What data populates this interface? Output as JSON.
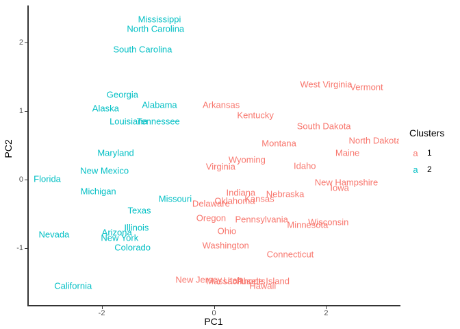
{
  "figure": {
    "background": "#ffffff",
    "axis_line_color": "#333333",
    "tick_label_color": "#4d4d4d"
  },
  "legend": {
    "title": "Clusters",
    "key_glyph": "a",
    "items": [
      {
        "label": "1",
        "color": "#F8766D"
      },
      {
        "label": "2",
        "color": "#00BFC4"
      }
    ]
  },
  "chart_data": {
    "type": "scatter",
    "title": "",
    "xlabel": "PC1",
    "ylabel": "PC2",
    "xlim": [
      -3.3,
      3.3
    ],
    "ylim": [
      -1.84,
      2.54
    ],
    "x_ticks": [
      -2,
      0,
      2
    ],
    "y_ticks": [
      -1,
      0,
      1,
      2
    ],
    "grid": false,
    "point_style": "text-labels",
    "legend_position": "right",
    "series": [
      {
        "name": "1",
        "color": "#F8766D",
        "points": [
          {
            "label": "Arkansas",
            "x": 0.13,
            "y": 1.09
          },
          {
            "label": "Kentucky",
            "x": 0.74,
            "y": 0.94
          },
          {
            "label": "West Virginia",
            "x": 2.0,
            "y": 1.39
          },
          {
            "label": "Vermont",
            "x": 2.72,
            "y": 1.35
          },
          {
            "label": "South Dakota",
            "x": 1.96,
            "y": 0.78
          },
          {
            "label": "North Dakota",
            "x": 2.87,
            "y": 0.57
          },
          {
            "label": "Montana",
            "x": 1.16,
            "y": 0.53
          },
          {
            "label": "Maine",
            "x": 2.38,
            "y": 0.39
          },
          {
            "label": "Wyoming",
            "x": 0.59,
            "y": 0.29
          },
          {
            "label": "Idaho",
            "x": 1.62,
            "y": 0.2
          },
          {
            "label": "Virginia",
            "x": 0.12,
            "y": 0.19
          },
          {
            "label": "New Hampshire",
            "x": 2.36,
            "y": -0.04
          },
          {
            "label": "Iowa",
            "x": 2.24,
            "y": -0.12
          },
          {
            "label": "Indiana",
            "x": 0.48,
            "y": -0.19
          },
          {
            "label": "Nebraska",
            "x": 1.27,
            "y": -0.21
          },
          {
            "label": "Kansas",
            "x": 0.81,
            "y": -0.28
          },
          {
            "label": "Oklahoma",
            "x": 0.37,
            "y": -0.31
          },
          {
            "label": "Delaware",
            "x": -0.05,
            "y": -0.35
          },
          {
            "label": "Oregon",
            "x": -0.05,
            "y": -0.56
          },
          {
            "label": "Pennsylvania",
            "x": 0.85,
            "y": -0.58
          },
          {
            "label": "Wisconsin",
            "x": 2.04,
            "y": -0.62
          },
          {
            "label": "Minnesota",
            "x": 1.67,
            "y": -0.66
          },
          {
            "label": "Ohio",
            "x": 0.23,
            "y": -0.75
          },
          {
            "label": "Washington",
            "x": 0.21,
            "y": -0.96
          },
          {
            "label": "Connecticut",
            "x": 1.36,
            "y": -1.09
          },
          {
            "label": "New Jersey",
            "x": -0.27,
            "y": -1.46
          },
          {
            "label": "Utah",
            "x": 0.34,
            "y": -1.47
          },
          {
            "label": "Massachusetts",
            "x": 0.39,
            "y": -1.48
          },
          {
            "label": "Rhode Island",
            "x": 0.88,
            "y": -1.48
          },
          {
            "label": "Hawaii",
            "x": 0.87,
            "y": -1.55
          }
        ]
      },
      {
        "name": "2",
        "color": "#00BFC4",
        "points": [
          {
            "label": "Mississippi",
            "x": -0.97,
            "y": 2.34
          },
          {
            "label": "North Carolina",
            "x": -1.04,
            "y": 2.2
          },
          {
            "label": "South Carolina",
            "x": -1.27,
            "y": 1.9
          },
          {
            "label": "Georgia",
            "x": -1.63,
            "y": 1.24
          },
          {
            "label": "Alaska",
            "x": -1.93,
            "y": 1.04
          },
          {
            "label": "Alabama",
            "x": -0.97,
            "y": 1.09
          },
          {
            "label": "Louisiana",
            "x": -1.52,
            "y": 0.85
          },
          {
            "label": "Tennessee",
            "x": -0.99,
            "y": 0.85
          },
          {
            "label": "Maryland",
            "x": -1.75,
            "y": 0.39
          },
          {
            "label": "New Mexico",
            "x": -1.95,
            "y": 0.13
          },
          {
            "label": "Florida",
            "x": -2.97,
            "y": 0.01
          },
          {
            "label": "Michigan",
            "x": -2.06,
            "y": -0.17
          },
          {
            "label": "Missouri",
            "x": -0.69,
            "y": -0.28
          },
          {
            "label": "Texas",
            "x": -1.33,
            "y": -0.45
          },
          {
            "label": "Illinois",
            "x": -1.38,
            "y": -0.7
          },
          {
            "label": "Nevada",
            "x": -2.85,
            "y": -0.8
          },
          {
            "label": "Arizona",
            "x": -1.73,
            "y": -0.77
          },
          {
            "label": "New York",
            "x": -1.68,
            "y": -0.85
          },
          {
            "label": "Colorado",
            "x": -1.45,
            "y": -0.99
          },
          {
            "label": "California",
            "x": -2.51,
            "y": -1.55
          }
        ]
      }
    ]
  }
}
